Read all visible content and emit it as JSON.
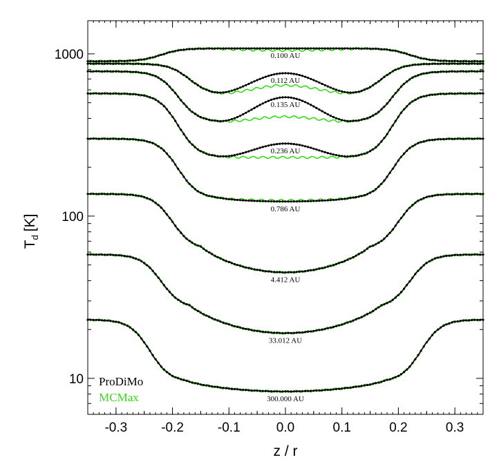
{
  "chart_data": {
    "type": "line",
    "xlabel": "z / r",
    "ylabel": "T",
    "ylabel_subscript": "d",
    "ylabel_unit": "[K]",
    "xlim": [
      -0.35,
      0.35
    ],
    "ylim": [
      6,
      1600
    ],
    "yscale": "log",
    "xticks": [
      -0.3,
      -0.2,
      -0.1,
      0.0,
      0.1,
      0.2,
      0.3
    ],
    "xtick_labels": [
      "-0.3",
      "-0.2",
      "-0.1",
      "0.0",
      "0.1",
      "0.2",
      "0.3"
    ],
    "yticks": [
      10,
      100,
      1000
    ],
    "ytick_labels": [
      "10",
      "100",
      "1000"
    ],
    "grid": false,
    "legend_position": "bottom-left",
    "legend": [
      {
        "name": "ProDiMo",
        "color": "#000000"
      },
      {
        "name": "MCMax",
        "color": "#33dd11"
      }
    ],
    "series": [
      {
        "label": "0.100 AU",
        "T_edge": 900,
        "x_drop": 0.22,
        "T_plateau": 1080,
        "x_center": 0.13,
        "T_center": 1080,
        "T_center_mcmax": 1050,
        "dip": 0
      },
      {
        "label": "0.112 AU",
        "T_edge": 870,
        "x_drop": 0.17,
        "T_plateau": 560,
        "x_center": 0.13,
        "T_center": 760,
        "T_center_mcmax": 640,
        "dip": 1
      },
      {
        "label": "0.135 AU",
        "T_edge": 780,
        "x_drop": 0.19,
        "T_plateau": 380,
        "x_center": 0.12,
        "T_center": 540,
        "T_center_mcmax": 410,
        "dip": 1
      },
      {
        "label": "0.236 AU",
        "T_edge": 570,
        "x_drop": 0.19,
        "T_plateau": 230,
        "x_center": 0.12,
        "T_center": 280,
        "T_center_mcmax": 230,
        "dip": 1
      },
      {
        "label": "0.786 AU",
        "T_edge": 300,
        "x_drop": 0.19,
        "T_plateau": 128,
        "x_center": 0.12,
        "T_center": 123,
        "T_center_mcmax": 125,
        "dip": 0
      },
      {
        "label": "4.412 AU",
        "T_edge": 137,
        "x_drop": 0.2,
        "T_plateau": 62,
        "x_center": 0.15,
        "T_center": 45,
        "T_center_mcmax": 45,
        "dip": 0
      },
      {
        "label": "33.012 AU",
        "T_edge": 58,
        "x_drop": 0.22,
        "T_plateau": 27,
        "x_center": 0.17,
        "T_center": 19,
        "T_center_mcmax": 19,
        "dip": 0
      },
      {
        "label": "300.000 AU",
        "T_edge": 23,
        "x_drop": 0.24,
        "T_plateau": 9.5,
        "x_center": 0.18,
        "T_center": 8.3,
        "T_center_mcmax": 8.3,
        "dip": 0
      }
    ]
  }
}
